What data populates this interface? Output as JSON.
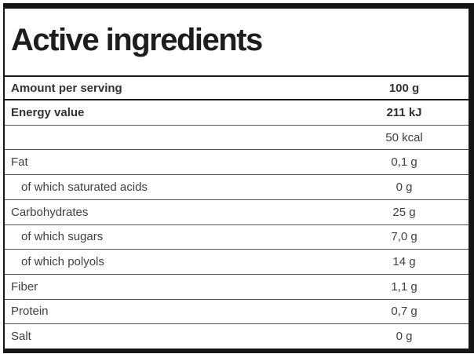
{
  "title": "Active ingredients",
  "table": {
    "header": {
      "label": "Amount per serving",
      "value": "100 g"
    },
    "rows": [
      {
        "label": "Energy value",
        "value": "211 kJ",
        "bold": true
      },
      {
        "label": "",
        "value": "50 kcal"
      },
      {
        "label": "Fat",
        "value": "0,1 g"
      },
      {
        "label": "of which saturated acids",
        "value": "0 g",
        "indent": true
      },
      {
        "label": "Carbohydrates",
        "value": "25 g"
      },
      {
        "label": "of which sugars",
        "value": "7,0 g",
        "indent": true
      },
      {
        "label": "of which polyols",
        "value": "14 g",
        "indent": true
      },
      {
        "label": "Fiber",
        "value": "1,1 g"
      },
      {
        "label": "Protein",
        "value": "0,7 g"
      },
      {
        "label": "Salt",
        "value": "0 g"
      }
    ]
  },
  "colors": {
    "frame_border": "#161616",
    "strong_rule": "#1c1c1c",
    "thin_rule": "#545454",
    "title_text": "#1d1d1d",
    "row_text": "#3f3f3f",
    "bold_row_text": "#323232",
    "background": "#ffffff"
  }
}
